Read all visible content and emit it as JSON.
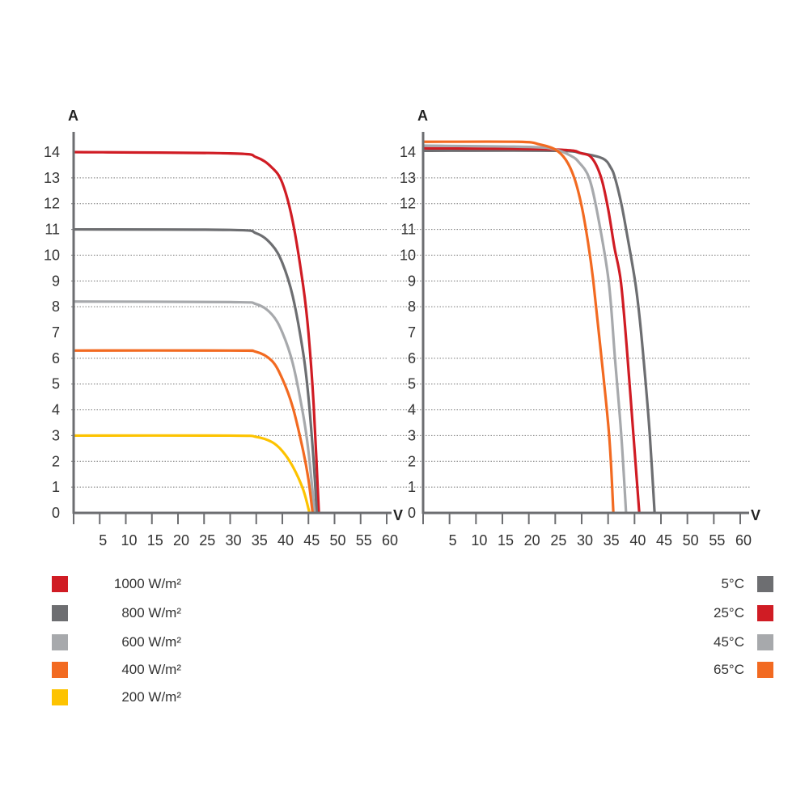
{
  "chart_data": [
    {
      "type": "line",
      "xlabel": "V",
      "ylabel": "A",
      "xlim": [
        0,
        60
      ],
      "ylim": [
        0,
        14
      ],
      "xticks": [
        5,
        10,
        15,
        20,
        25,
        30,
        35,
        40,
        45,
        50,
        55,
        60
      ],
      "yticks": [
        0,
        1,
        2,
        3,
        4,
        5,
        6,
        7,
        8,
        9,
        10,
        11,
        12,
        13,
        14
      ],
      "gridlines": [
        1,
        2,
        3,
        4,
        5,
        6,
        8,
        9,
        10,
        11,
        12,
        13
      ],
      "grid": "dotted horizontal",
      "legend_position": "bottom-left",
      "series": [
        {
          "name": "1000 W/m²",
          "color": "#d01c24",
          "points": [
            [
              0,
              14
            ],
            [
              30,
              13.95
            ],
            [
              35,
              13.8
            ],
            [
              38,
              13.4
            ],
            [
              40,
              12.8
            ],
            [
              42,
              11.3
            ],
            [
              44,
              8.8
            ],
            [
              45,
              7.0
            ],
            [
              46,
              4.2
            ],
            [
              47,
              0
            ]
          ]
        },
        {
          "name": "800 W/m²",
          "color": "#6d6e71",
          "points": [
            [
              0,
              11
            ],
            [
              30,
              10.98
            ],
            [
              35,
              10.85
            ],
            [
              38,
              10.4
            ],
            [
              40,
              9.7
            ],
            [
              42,
              8.4
            ],
            [
              44,
              6.2
            ],
            [
              45,
              4.5
            ],
            [
              46,
              2.0
            ],
            [
              46.6,
              0
            ]
          ]
        },
        {
          "name": "600 W/m²",
          "color": "#a7a9ac",
          "points": [
            [
              0,
              8.2
            ],
            [
              30,
              8.18
            ],
            [
              35,
              8.1
            ],
            [
              38,
              7.7
            ],
            [
              40,
              7.0
            ],
            [
              42,
              5.8
            ],
            [
              44,
              3.8
            ],
            [
              45,
              2.4
            ],
            [
              46.2,
              0
            ]
          ]
        },
        {
          "name": "400 W/m²",
          "color": "#f26a21",
          "points": [
            [
              0,
              6.3
            ],
            [
              30,
              6.3
            ],
            [
              35,
              6.25
            ],
            [
              38,
              5.9
            ],
            [
              40,
              5.2
            ],
            [
              42,
              4.1
            ],
            [
              44,
              2.4
            ],
            [
              45,
              1.3
            ],
            [
              45.8,
              0
            ]
          ]
        },
        {
          "name": "200 W/m²",
          "color": "#fdc300",
          "points": [
            [
              0,
              3
            ],
            [
              30,
              3
            ],
            [
              35,
              2.95
            ],
            [
              38,
              2.75
            ],
            [
              40,
              2.4
            ],
            [
              42,
              1.8
            ],
            [
              44,
              0.9
            ],
            [
              45.2,
              0
            ]
          ]
        }
      ]
    },
    {
      "type": "line",
      "xlabel": "V",
      "ylabel": "A",
      "xlim": [
        0,
        60
      ],
      "ylim": [
        0,
        14
      ],
      "xticks": [
        5,
        10,
        15,
        20,
        25,
        30,
        35,
        40,
        45,
        50,
        55,
        60
      ],
      "yticks": [
        0,
        1,
        2,
        3,
        4,
        5,
        6,
        7,
        8,
        9,
        10,
        11,
        12,
        13,
        14
      ],
      "gridlines": [
        1,
        2,
        3,
        4,
        5,
        6,
        8,
        9,
        10,
        11,
        12,
        13
      ],
      "grid": "dotted horizontal",
      "legend_position": "bottom-right",
      "series": [
        {
          "name": "5°C",
          "color": "#6d6e71",
          "points": [
            [
              0,
              14.05
            ],
            [
              25,
              14.05
            ],
            [
              30,
              13.95
            ],
            [
              34,
              13.75
            ],
            [
              35.5,
              13.4
            ],
            [
              36.3,
              13.0
            ],
            [
              37.5,
              12.0
            ],
            [
              38.5,
              10.9
            ],
            [
              40.1,
              9.0
            ],
            [
              41,
              7.5
            ],
            [
              42,
              5.3
            ],
            [
              42.9,
              3.0
            ],
            [
              43.8,
              0
            ]
          ]
        },
        {
          "name": "25°C",
          "color": "#d01c24",
          "points": [
            [
              0,
              14.15
            ],
            [
              25,
              14.1
            ],
            [
              30,
              13.95
            ],
            [
              32,
              13.75
            ],
            [
              33.7,
              13.0
            ],
            [
              35,
              11.8
            ],
            [
              36.2,
              10.3
            ],
            [
              37.4,
              9.0
            ],
            [
              38.5,
              6.5
            ],
            [
              39.8,
              3.0
            ],
            [
              40.9,
              0
            ]
          ]
        },
        {
          "name": "45°C",
          "color": "#a7a9ac",
          "points": [
            [
              0,
              14.25
            ],
            [
              20,
              14.2
            ],
            [
              25,
              14.1
            ],
            [
              28,
              13.85
            ],
            [
              29.5,
              13.6
            ],
            [
              31.4,
              13.0
            ],
            [
              33,
              11.6
            ],
            [
              35.1,
              9.0
            ],
            [
              36.3,
              6.0
            ],
            [
              37.5,
              3.0
            ],
            [
              38.4,
              0
            ]
          ]
        },
        {
          "name": "65°C",
          "color": "#f26a21",
          "points": [
            [
              0,
              14.4
            ],
            [
              18,
              14.4
            ],
            [
              22,
              14.3
            ],
            [
              25,
              14.1
            ],
            [
              27,
              13.7
            ],
            [
              28.6,
              13.0
            ],
            [
              30,
              11.9
            ],
            [
              31.2,
              10.5
            ],
            [
              32.2,
              9.0
            ],
            [
              33.5,
              6.5
            ],
            [
              35.2,
              3.0
            ],
            [
              36,
              0
            ]
          ]
        }
      ]
    }
  ],
  "axis_color": "#6d6e71"
}
